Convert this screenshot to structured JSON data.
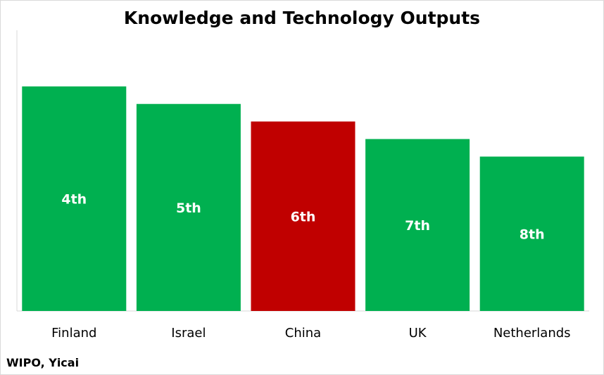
{
  "chart_data": {
    "type": "bar",
    "title": "Knowledge and Technology Outputs",
    "categories": [
      "Finland",
      "Israel",
      "China",
      "UK",
      "Netherlands"
    ],
    "values": [
      8,
      7.375,
      6.75,
      6.125,
      5.5
    ],
    "data_labels": [
      "4th",
      "5th",
      "6th",
      "7th",
      "8th"
    ],
    "bar_colors": [
      "#00b050",
      "#00b050",
      "#c00000",
      "#00b050",
      "#00b050"
    ],
    "data_label_color": "#ffffff",
    "ylim": [
      0,
      10
    ],
    "xlabel": "",
    "ylabel": "",
    "grid": false,
    "legend": "none"
  },
  "source": "WIPO, Yicai"
}
